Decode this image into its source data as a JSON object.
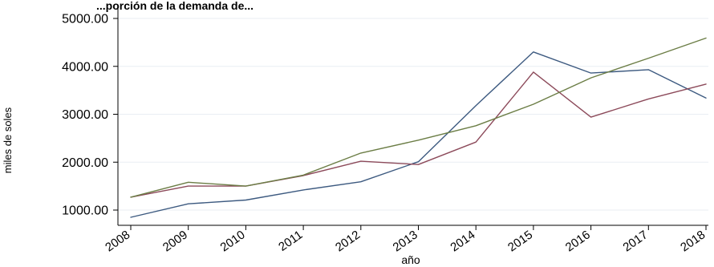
{
  "header_fragment": "...porción de la demanda de...",
  "chart_data": {
    "type": "line",
    "title": "",
    "xlabel": "año",
    "ylabel": "miles de soles",
    "x": [
      "2008",
      "2009",
      "2010",
      "2011",
      "2012",
      "2013",
      "2014",
      "2015",
      "2016",
      "2017",
      "2018"
    ],
    "ylim": [
      850,
      5000
    ],
    "yticks": [
      1000,
      2000,
      3000,
      4000,
      5000
    ],
    "ytick_labels": [
      "1000.00",
      "2000.00",
      "3000.00",
      "4000.00",
      "5000.00"
    ],
    "grid": true,
    "legend": "none",
    "series": [
      {
        "color": "#3d5a80",
        "values": [
          850,
          1130,
          1210,
          1420,
          1590,
          2010,
          3180,
          4300,
          3860,
          3930,
          3340
        ]
      },
      {
        "color": "#8c4a5a",
        "values": [
          1270,
          1500,
          1500,
          1720,
          2020,
          1950,
          2420,
          3880,
          2940,
          3320,
          3630
        ]
      },
      {
        "color": "#6b7d45",
        "values": [
          1270,
          1580,
          1500,
          1730,
          2190,
          2460,
          2760,
          3210,
          3760,
          4170,
          4590
        ]
      }
    ]
  }
}
